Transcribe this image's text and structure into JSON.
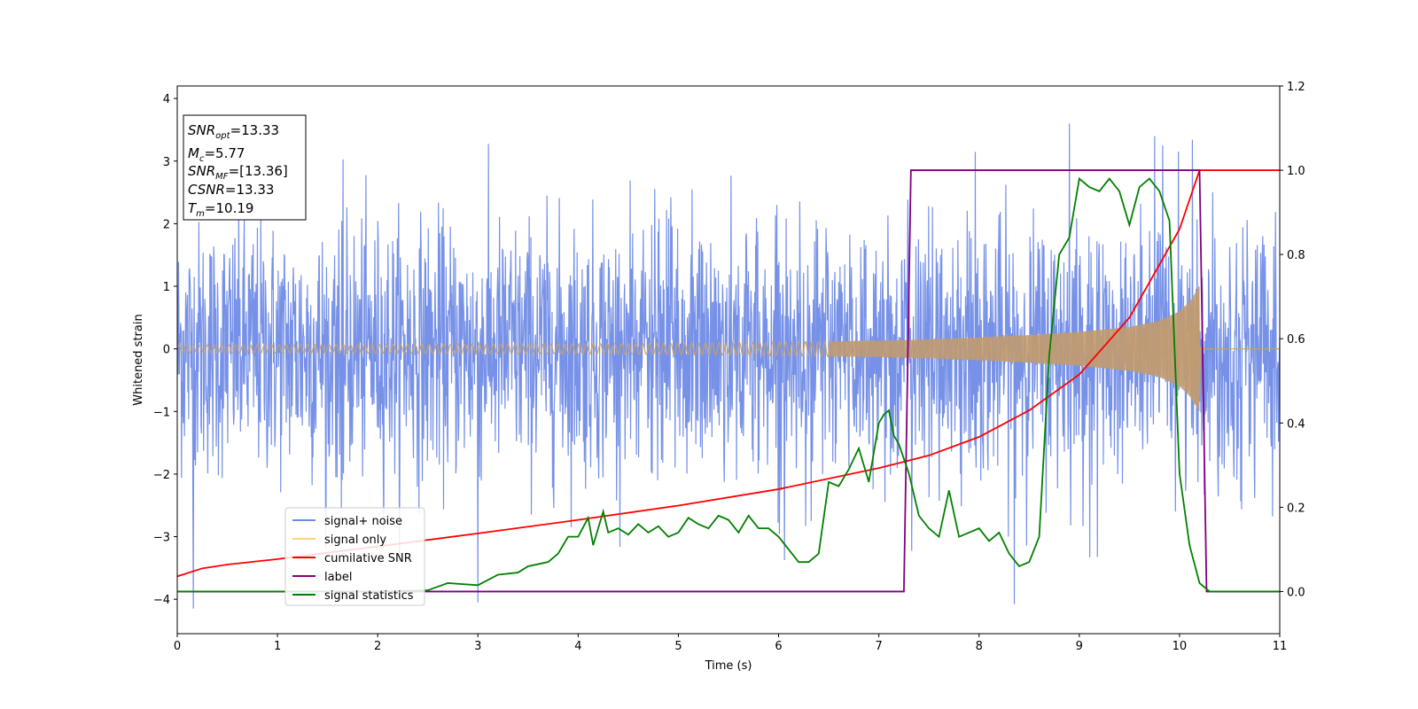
{
  "chart_data": {
    "type": "line",
    "xlabel": "Time (s)",
    "ylabel": "Whitened strain",
    "xlim": [
      0,
      11
    ],
    "ylim_left": [
      -4.55,
      4.2
    ],
    "ylim_right": [
      -0.1,
      1.2
    ],
    "x_ticks": [
      0,
      1,
      2,
      3,
      4,
      5,
      6,
      7,
      8,
      9,
      10,
      11
    ],
    "y_ticks_left": [
      -4,
      -3,
      -2,
      -1,
      0,
      1,
      2,
      3,
      4
    ],
    "y_ticks_right": [
      0.0,
      0.2,
      0.4,
      0.6,
      0.8,
      1.0,
      1.2
    ],
    "x_tick_labels": [
      "0",
      "1",
      "2",
      "3",
      "4",
      "5",
      "6",
      "7",
      "8",
      "9",
      "10",
      "11"
    ],
    "y_tick_labels_left": [
      "−4",
      "−3",
      "−2",
      "−1",
      "0",
      "1",
      "2",
      "3",
      "4"
    ],
    "y_tick_labels_right": [
      "0.0",
      "0.2",
      "0.4",
      "0.6",
      "0.8",
      "1.0",
      "1.2"
    ],
    "grid": false,
    "legend_position": "lower-left",
    "info_box": {
      "snr_opt": {
        "label": "SNR",
        "sub": "opt",
        "value": "=13.33"
      },
      "mc": {
        "label": "M",
        "sub": "c",
        "value": "=5.77"
      },
      "snr_mf": {
        "label": "SNR",
        "sub": "MF",
        "value": "=[13.36]"
      },
      "csnr": {
        "label": "CSNR",
        "sub": "",
        "value": "=13.33"
      },
      "tm": {
        "label": "T",
        "sub": "m",
        "value": "=10.19"
      }
    },
    "series": [
      {
        "name": "signal+ noise",
        "axis": "left",
        "color": "#6f8be6",
        "description_note": "whitened noise, approx std 1, peaks near ±3.6",
        "x_range": [
          0,
          11
        ],
        "typical_amplitude": 1.0,
        "extreme_values": [
          [
            0.16,
            -4.15
          ],
          [
            3.0,
            -4.05
          ],
          [
            8.35,
            -4.08
          ],
          [
            8.9,
            3.6
          ],
          [
            9.75,
            3.4
          ],
          [
            9.99,
            3.15
          ]
        ]
      },
      {
        "name": "signal only",
        "axis": "left",
        "color": "#ffd27f",
        "envelope": {
          "x": [
            0,
            1,
            2,
            3,
            4,
            5,
            6,
            7,
            7.5,
            8,
            8.5,
            9,
            9.5,
            9.8,
            10.0,
            10.1,
            10.2,
            10.21,
            11
          ],
          "amplitude": [
            0.06,
            0.065,
            0.07,
            0.075,
            0.08,
            0.09,
            0.11,
            0.13,
            0.15,
            0.18,
            0.22,
            0.27,
            0.35,
            0.45,
            0.6,
            0.75,
            1.0,
            0.0,
            0.0
          ]
        }
      },
      {
        "name": "cumilative SNR",
        "axis": "right",
        "color": "#ff0000",
        "x": [
          0,
          0.25,
          0.5,
          1,
          2,
          3,
          4,
          5,
          6,
          7,
          7.5,
          8,
          8.5,
          9,
          9.5,
          10.0,
          10.2,
          11
        ],
        "y": [
          0.036,
          0.055,
          0.064,
          0.077,
          0.107,
          0.138,
          0.17,
          0.204,
          0.243,
          0.293,
          0.323,
          0.367,
          0.43,
          0.515,
          0.65,
          0.86,
          1.0,
          1.0
        ]
      },
      {
        "name": "label",
        "axis": "right",
        "color": "#800080",
        "x": [
          0,
          7.25,
          7.32,
          10.2,
          10.27,
          11
        ],
        "y": [
          0,
          0,
          1,
          1,
          0,
          0
        ]
      },
      {
        "name": "signal statistics",
        "axis": "right",
        "color": "#008000",
        "x": [
          0,
          1,
          2,
          2.5,
          2.7,
          3.0,
          3.2,
          3.4,
          3.5,
          3.6,
          3.7,
          3.8,
          3.9,
          4.0,
          4.1,
          4.15,
          4.25,
          4.3,
          4.4,
          4.5,
          4.6,
          4.7,
          4.8,
          4.9,
          5.0,
          5.1,
          5.2,
          5.3,
          5.4,
          5.5,
          5.6,
          5.7,
          5.8,
          5.9,
          6.0,
          6.1,
          6.2,
          6.3,
          6.4,
          6.5,
          6.6,
          6.7,
          6.8,
          6.9,
          7.0,
          7.05,
          7.1,
          7.15,
          7.2,
          7.3,
          7.4,
          7.5,
          7.6,
          7.7,
          7.8,
          7.9,
          8.0,
          8.1,
          8.2,
          8.3,
          8.4,
          8.5,
          8.6,
          8.7,
          8.8,
          8.9,
          9.0,
          9.1,
          9.2,
          9.3,
          9.4,
          9.5,
          9.6,
          9.7,
          9.8,
          9.9,
          10.0,
          10.1,
          10.2,
          10.3,
          10.4,
          10.5,
          11
        ],
        "y": [
          0.0,
          0.0,
          0.0,
          0.003,
          0.02,
          0.015,
          0.04,
          0.045,
          0.06,
          0.065,
          0.07,
          0.09,
          0.13,
          0.13,
          0.175,
          0.11,
          0.19,
          0.14,
          0.15,
          0.135,
          0.16,
          0.14,
          0.155,
          0.13,
          0.14,
          0.175,
          0.16,
          0.15,
          0.18,
          0.17,
          0.14,
          0.18,
          0.15,
          0.15,
          0.13,
          0.1,
          0.07,
          0.07,
          0.09,
          0.26,
          0.25,
          0.29,
          0.34,
          0.26,
          0.4,
          0.42,
          0.43,
          0.37,
          0.35,
          0.28,
          0.18,
          0.15,
          0.13,
          0.24,
          0.13,
          0.14,
          0.15,
          0.12,
          0.14,
          0.09,
          0.06,
          0.07,
          0.13,
          0.56,
          0.8,
          0.84,
          0.98,
          0.96,
          0.95,
          0.98,
          0.95,
          0.87,
          0.96,
          0.98,
          0.95,
          0.88,
          0.28,
          0.11,
          0.02,
          0.0,
          0.0,
          0.0,
          0.0
        ]
      }
    ]
  }
}
